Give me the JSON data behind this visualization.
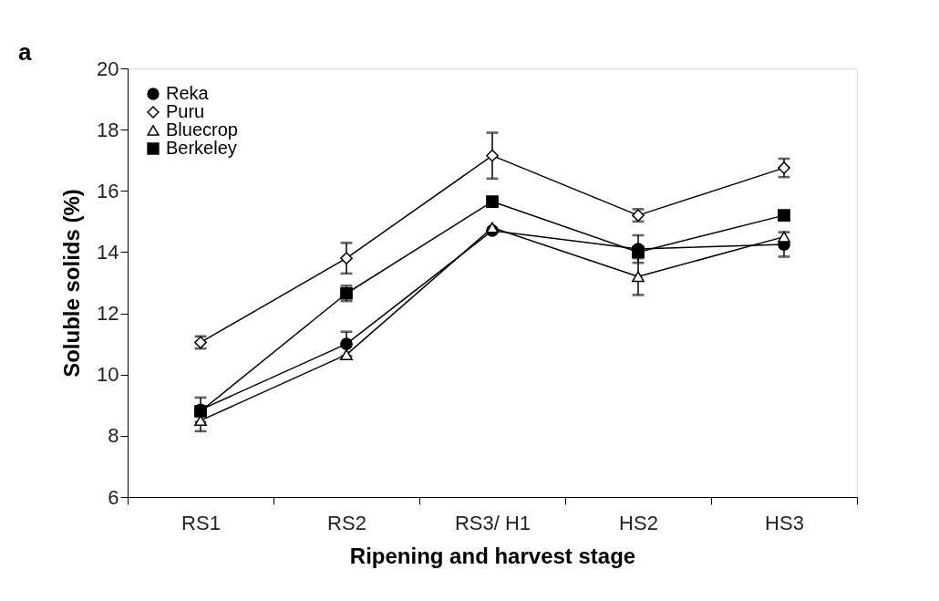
{
  "chart_data": {
    "type": "line",
    "xlabel": "Ripening and harvest stage",
    "ylabel": "Soluble solids (%)",
    "categories": [
      "RS1",
      "RS2",
      "RS3/ H1",
      "HS2",
      "HS3"
    ],
    "ylim": [
      6,
      20
    ],
    "yticks": [
      6,
      8,
      10,
      12,
      14,
      16,
      18,
      20
    ],
    "grid": false,
    "legend": "top left",
    "annotations": [
      "a"
    ],
    "series": [
      {
        "name": "Reka",
        "color": "#000000",
        "marker": "circle",
        "values": [
          8.85,
          11.0,
          14.7,
          14.1,
          14.25
        ],
        "errors": [
          0.4,
          0.4,
          null,
          0.45,
          0.4
        ]
      },
      {
        "name": "Puru",
        "color": "#000000",
        "marker": "diamond",
        "values": [
          11.05,
          13.8,
          17.15,
          15.2,
          16.75
        ],
        "errors": [
          0.2,
          0.5,
          0.75,
          0.2,
          0.3
        ]
      },
      {
        "name": "Bluecrop",
        "color": "#000000",
        "marker": "triangle",
        "values": [
          8.5,
          10.65,
          14.8,
          13.2,
          14.5
        ],
        "errors": [
          0.35,
          null,
          null,
          0.6,
          null
        ]
      },
      {
        "name": "Berkeley",
        "color": "#000000",
        "marker": "square",
        "values": [
          8.8,
          12.65,
          15.65,
          14.0,
          15.2
        ],
        "errors": [
          null,
          0.25,
          null,
          null,
          null
        ]
      }
    ]
  }
}
